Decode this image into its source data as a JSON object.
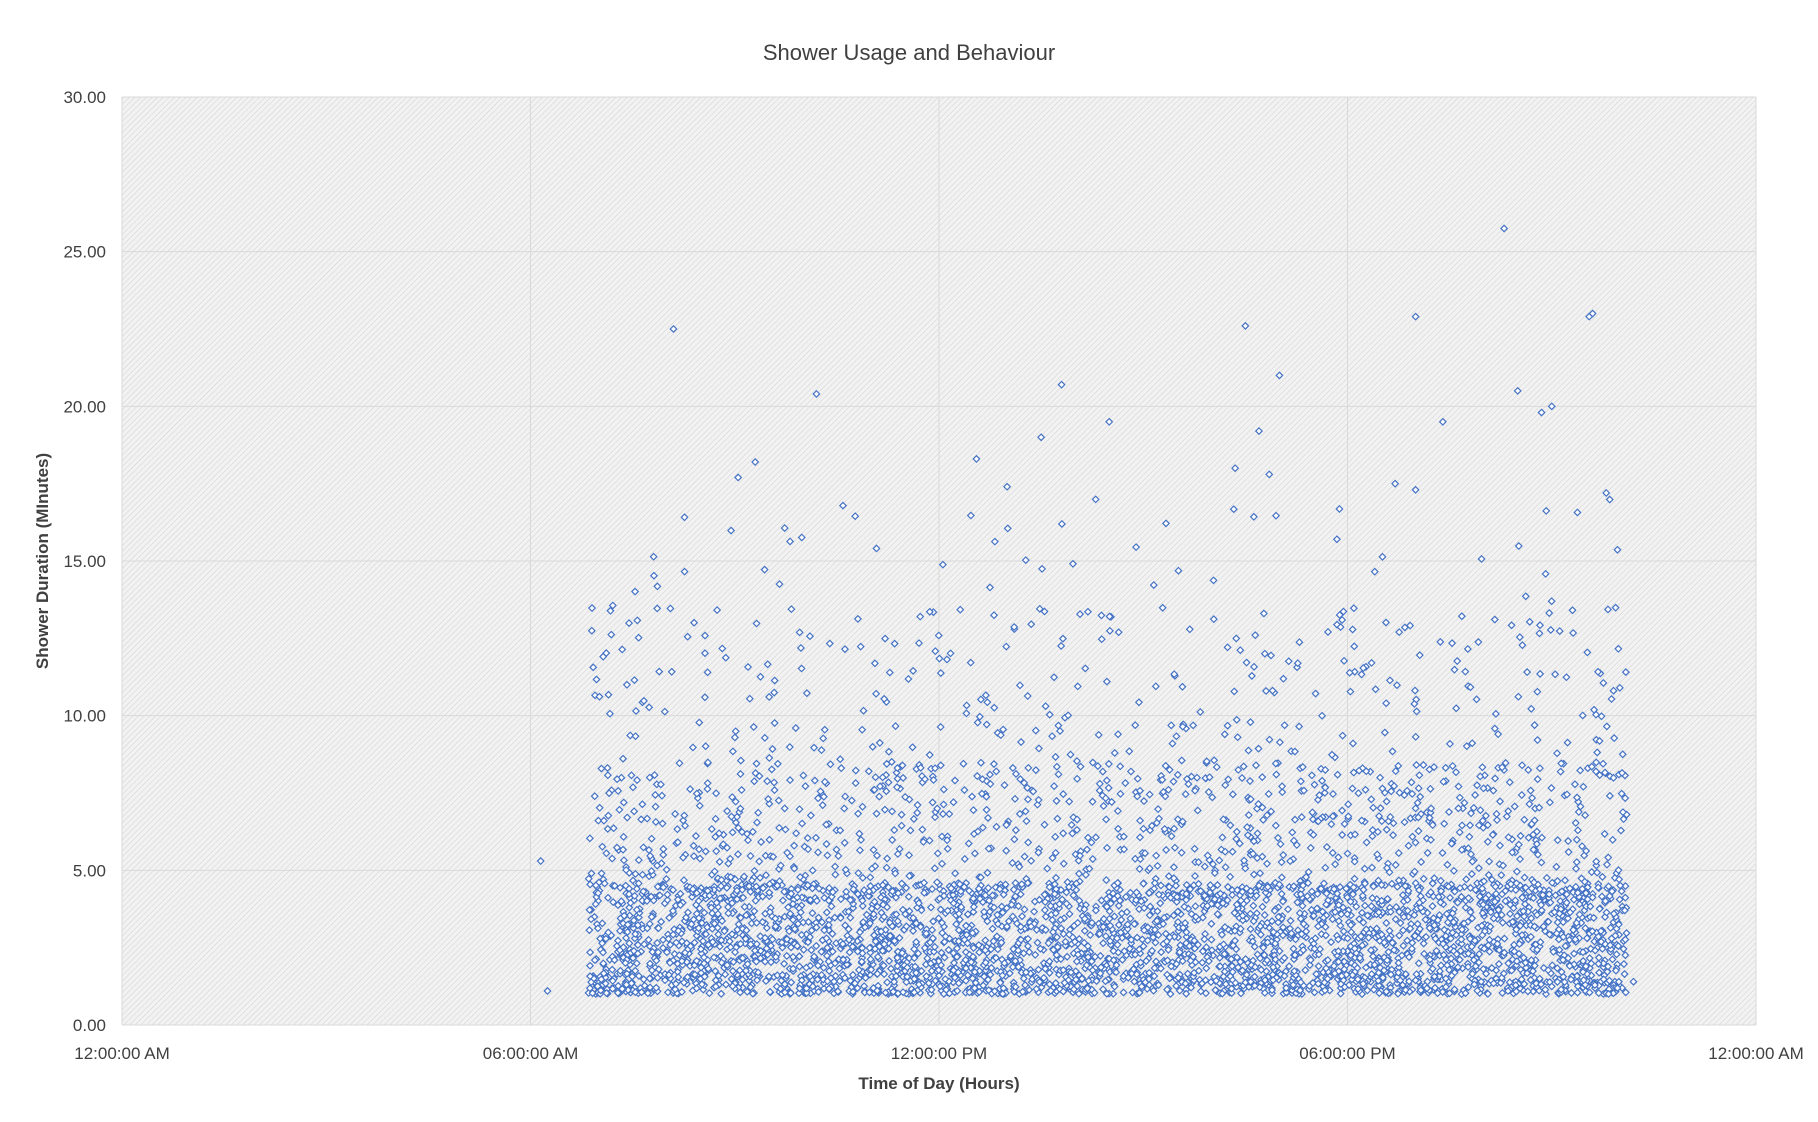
{
  "chart_data": {
    "type": "scatter",
    "title": "Shower Usage and Behaviour",
    "xlabel": "Time of Day (Hours)",
    "ylabel": "Shower Duration (MInutes)",
    "xlim": [
      0,
      24
    ],
    "ylim": [
      0,
      30
    ],
    "x_ticks": [
      {
        "value": 0,
        "label": "12:00:00 AM"
      },
      {
        "value": 6,
        "label": "06:00:00 AM"
      },
      {
        "value": 12,
        "label": "12:00:00 PM"
      },
      {
        "value": 18,
        "label": "06:00:00 PM"
      },
      {
        "value": 24,
        "label": "12:00:00 AM"
      }
    ],
    "y_ticks": [
      {
        "value": 0,
        "label": "0.00"
      },
      {
        "value": 5,
        "label": "5.00"
      },
      {
        "value": 10,
        "label": "10.00"
      },
      {
        "value": 15,
        "label": "15.00"
      },
      {
        "value": 20,
        "label": "20.00"
      },
      {
        "value": 25,
        "label": "25.00"
      },
      {
        "value": 30,
        "label": "30.00"
      }
    ],
    "grid": true,
    "marker": "diamond-open",
    "series_color": "#4472c4",
    "notable_points": [
      {
        "x": 8.1,
        "y": 22.5
      },
      {
        "x": 16.5,
        "y": 22.6
      },
      {
        "x": 17.0,
        "y": 21.0
      },
      {
        "x": 20.3,
        "y": 25.75
      },
      {
        "x": 19.0,
        "y": 22.9
      },
      {
        "x": 20.5,
        "y": 20.5
      },
      {
        "x": 20.85,
        "y": 19.8
      },
      {
        "x": 21.0,
        "y": 20.0
      },
      {
        "x": 21.55,
        "y": 22.9
      },
      {
        "x": 21.6,
        "y": 23.0
      },
      {
        "x": 19.4,
        "y": 19.5
      },
      {
        "x": 12.55,
        "y": 18.3
      },
      {
        "x": 13.5,
        "y": 19.0
      },
      {
        "x": 13.8,
        "y": 20.7
      },
      {
        "x": 10.2,
        "y": 20.4
      },
      {
        "x": 14.5,
        "y": 19.5
      },
      {
        "x": 9.3,
        "y": 18.2
      },
      {
        "x": 9.05,
        "y": 17.7
      },
      {
        "x": 13.0,
        "y": 17.4
      },
      {
        "x": 16.35,
        "y": 18.0
      },
      {
        "x": 16.7,
        "y": 19.2
      },
      {
        "x": 16.85,
        "y": 17.8
      },
      {
        "x": 18.7,
        "y": 17.5
      },
      {
        "x": 19.0,
        "y": 17.3
      },
      {
        "x": 21.8,
        "y": 17.2
      },
      {
        "x": 6.15,
        "y": 5.3
      },
      {
        "x": 6.25,
        "y": 1.1
      },
      {
        "x": 22.2,
        "y": 1.4
      },
      {
        "x": 22.1,
        "y": 6.8
      },
      {
        "x": 22.0,
        "y": 10.9
      }
    ],
    "note": "Several thousand points spanning about 06:10 AM to 10:10 PM; most durations fall between 1 and 8 minutes, thinning out above 10 minutes."
  }
}
